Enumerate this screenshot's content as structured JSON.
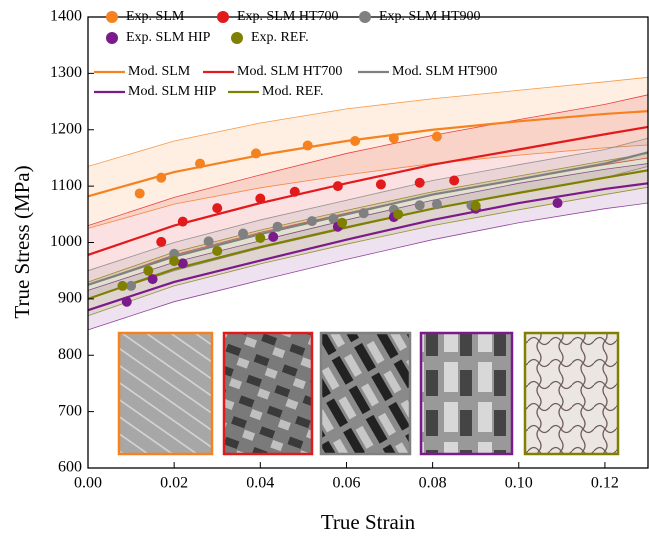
{
  "chart_data": {
    "type": "scatter",
    "xlabel": "True Strain",
    "ylabel": "True Stress (MPa)",
    "xlim": [
      0,
      0.13
    ],
    "ylim": [
      600,
      1400
    ],
    "xticks": [
      {
        "value": 0,
        "label": "0.00"
      },
      0.02,
      0.04,
      0.06,
      0.08,
      {
        "value": 0.1,
        "label": "0.10"
      },
      0.12
    ],
    "yticks": [
      600,
      700,
      800,
      900,
      1000,
      1100,
      1200,
      1300,
      1400
    ],
    "series": [
      {
        "type": "scatter",
        "name": "Exp. SLM",
        "color": "#f5821f",
        "x": [
          0.012,
          0.017,
          0.026,
          0.039,
          0.051,
          0.062,
          0.071,
          0.081
        ],
        "values": [
          1087,
          1115,
          1140,
          1158,
          1172,
          1180,
          1185,
          1188
        ]
      },
      {
        "type": "scatter",
        "name": "Exp. SLM HT700",
        "color": "#e31a1c",
        "x": [
          0.017,
          0.022,
          0.03,
          0.04,
          0.048,
          0.058,
          0.068,
          0.077,
          0.085
        ],
        "values": [
          1001,
          1037,
          1061,
          1078,
          1090,
          1100,
          1103,
          1106,
          1110
        ]
      },
      {
        "type": "scatter",
        "name": "Exp. SLM HT900",
        "color": "#808080",
        "x": [
          0.01,
          0.02,
          0.028,
          0.036,
          0.044,
          0.052,
          0.057,
          0.064,
          0.071,
          0.077,
          0.081,
          0.089
        ],
        "values": [
          923,
          980,
          1002,
          1016,
          1028,
          1038,
          1042,
          1052,
          1058,
          1066,
          1068,
          1066
        ]
      },
      {
        "type": "scatter",
        "name": "Exp. SLM HIP",
        "color": "#7b1a8a",
        "x": [
          0.009,
          0.015,
          0.022,
          0.043,
          0.058,
          0.071,
          0.09,
          0.109
        ],
        "values": [
          895,
          935,
          963,
          1010,
          1028,
          1045,
          1060,
          1070
        ]
      },
      {
        "type": "scatter",
        "name": "Exp. REF.",
        "color": "#808000",
        "x": [
          0.008,
          0.014,
          0.02,
          0.03,
          0.04,
          0.059,
          0.072,
          0.09
        ],
        "values": [
          923,
          950,
          967,
          985,
          1008,
          1035,
          1050,
          1065
        ]
      },
      {
        "type": "line",
        "name": "Mod. SLM",
        "color": "#f5821f",
        "x": [
          0,
          0.02,
          0.04,
          0.06,
          0.08,
          0.1,
          0.12,
          0.13
        ],
        "values": [
          1082,
          1125,
          1155,
          1180,
          1200,
          1215,
          1228,
          1233
        ],
        "upper": [
          1135,
          1180,
          1212,
          1237,
          1255,
          1270,
          1285,
          1293
        ],
        "lower": [
          1025,
          1068,
          1097,
          1120,
          1140,
          1155,
          1168,
          1173
        ]
      },
      {
        "type": "line",
        "name": "Mod. SLM HT700",
        "color": "#e31a1c",
        "x": [
          0,
          0.02,
          0.04,
          0.06,
          0.08,
          0.1,
          0.12,
          0.13
        ],
        "values": [
          978,
          1030,
          1070,
          1105,
          1138,
          1165,
          1192,
          1205
        ],
        "upper": [
          1030,
          1080,
          1120,
          1158,
          1190,
          1218,
          1245,
          1262
        ],
        "lower": [
          925,
          978,
          1018,
          1052,
          1085,
          1112,
          1138,
          1150
        ]
      },
      {
        "type": "line",
        "name": "Mod. SLM HT900",
        "color": "#808080",
        "x": [
          0,
          0.02,
          0.04,
          0.06,
          0.08,
          0.1,
          0.12,
          0.13
        ],
        "values": [
          925,
          975,
          1015,
          1050,
          1085,
          1112,
          1140,
          1160
        ],
        "upper": [
          950,
          1000,
          1040,
          1075,
          1110,
          1138,
          1165,
          1185
        ],
        "lower": [
          900,
          950,
          990,
          1025,
          1060,
          1087,
          1115,
          1135
        ]
      },
      {
        "type": "line",
        "name": "Mod. SLM HIP",
        "color": "#7b1a8a",
        "x": [
          0,
          0.02,
          0.04,
          0.06,
          0.08,
          0.1,
          0.12,
          0.13
        ],
        "values": [
          880,
          930,
          968,
          1005,
          1040,
          1070,
          1095,
          1105
        ],
        "upper": [
          915,
          965,
          1003,
          1040,
          1075,
          1105,
          1130,
          1140
        ],
        "lower": [
          845,
          895,
          933,
          970,
          1005,
          1035,
          1060,
          1070
        ]
      },
      {
        "type": "line",
        "name": "Mod. REF.",
        "color": "#808000",
        "x": [
          0,
          0.02,
          0.04,
          0.06,
          0.08,
          0.1,
          0.12,
          0.13
        ],
        "values": [
          900,
          953,
          992,
          1027,
          1060,
          1088,
          1115,
          1128
        ],
        "upper": [
          930,
          983,
          1022,
          1057,
          1090,
          1118,
          1145,
          1158
        ],
        "lower": [
          870,
          923,
          962,
          997,
          1030,
          1058,
          1085,
          1098
        ]
      }
    ]
  }
}
